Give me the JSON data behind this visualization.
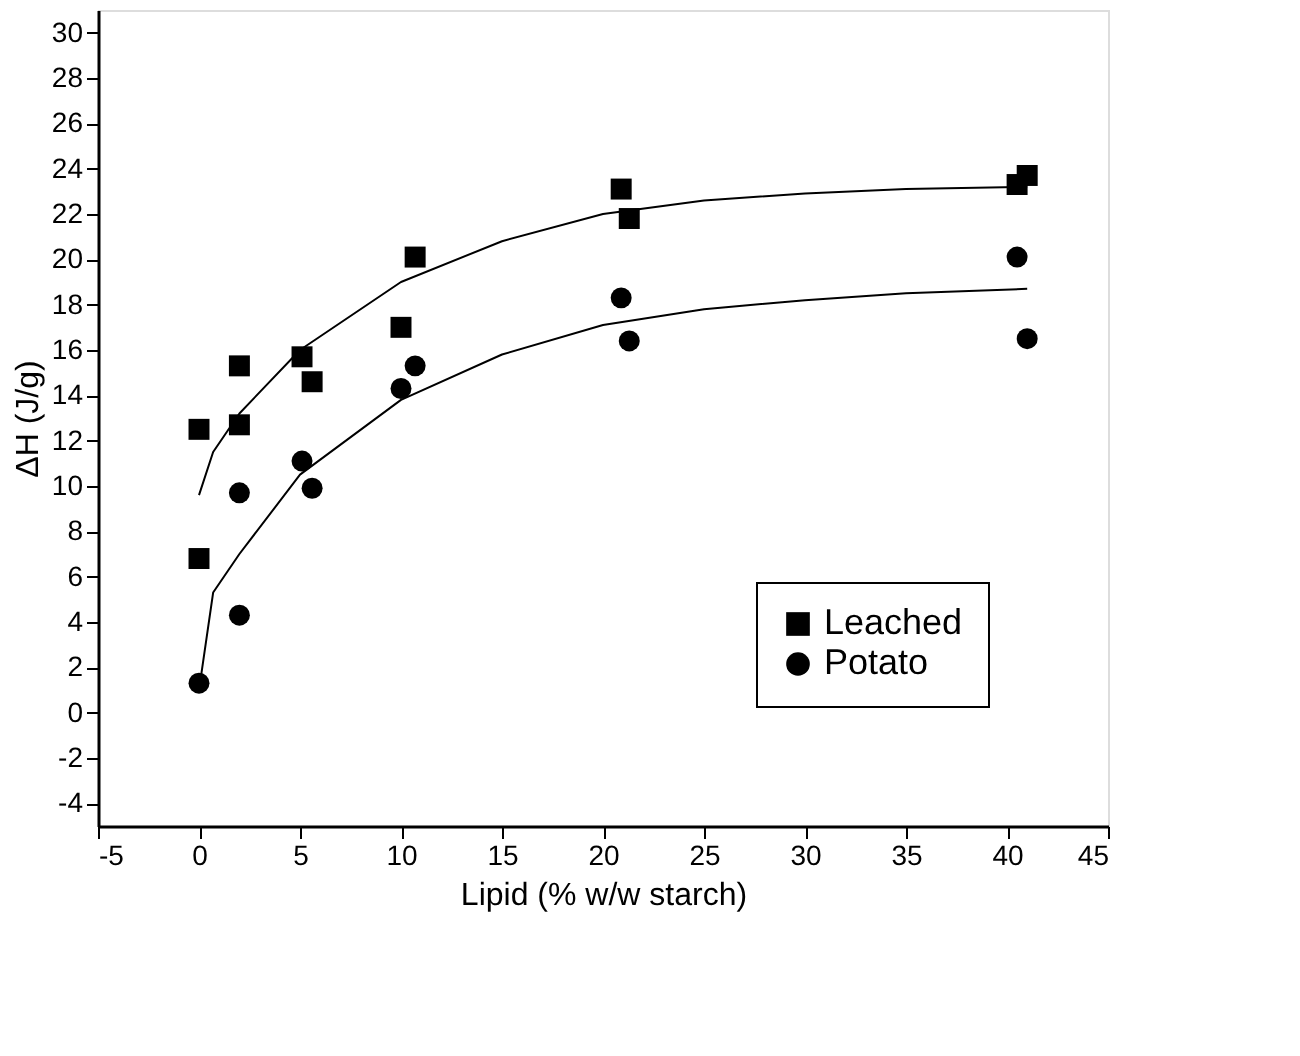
{
  "chart_data": {
    "type": "scatter",
    "xlabel": "Lipid (% w/w starch)",
    "ylabel": "ΔH (J/g)",
    "xlim": [
      -5,
      45
    ],
    "xticks": [
      -5,
      0,
      5,
      10,
      15,
      20,
      25,
      30,
      35,
      40,
      45
    ],
    "ylim": [
      -5,
      31
    ],
    "yticks": [
      -4,
      -2,
      0,
      2,
      4,
      6,
      8,
      10,
      12,
      14,
      16,
      18,
      20,
      22,
      24,
      26,
      28,
      30
    ],
    "grid": false,
    "legend": "bottom right",
    "series": [
      {
        "name": "Leached",
        "marker": "square",
        "color": "#000000",
        "x": [
          0,
          0,
          2,
          2,
          5.1,
          5.6,
          10,
          10.7,
          20.9,
          21.3,
          40.5,
          41
        ],
        "values": [
          12.5,
          6.8,
          15.3,
          12.7,
          15.7,
          14.6,
          17,
          20.1,
          23.1,
          21.8,
          23.3,
          23.7
        ]
      },
      {
        "name": "Potato",
        "marker": "circle",
        "color": "#000000",
        "x": [
          0,
          2,
          2,
          5.1,
          5.6,
          10,
          10.7,
          20.9,
          21.3,
          40.5,
          41
        ],
        "values": [
          1.3,
          9.7,
          4.3,
          11.1,
          9.9,
          14.3,
          15.3,
          18.3,
          16.4,
          20.1,
          16.5
        ]
      },
      {
        "type": "line",
        "color": "#000000",
        "line_style": "solid",
        "x": [
          0,
          0.7,
          2,
          5,
          10,
          15,
          20,
          25,
          30,
          35,
          41
        ],
        "values": [
          9.6,
          11.5,
          13.2,
          16,
          19,
          20.8,
          22,
          22.6,
          22.9,
          23.1,
          23.2
        ]
      },
      {
        "type": "line",
        "color": "#000000",
        "line_style": "solid",
        "x": [
          0.05,
          0.7,
          2,
          5,
          10,
          15,
          20,
          25,
          30,
          35,
          41
        ],
        "values": [
          1.3,
          5.3,
          7,
          10.5,
          13.8,
          15.8,
          17.1,
          17.8,
          18.2,
          18.5,
          18.7
        ]
      }
    ]
  }
}
